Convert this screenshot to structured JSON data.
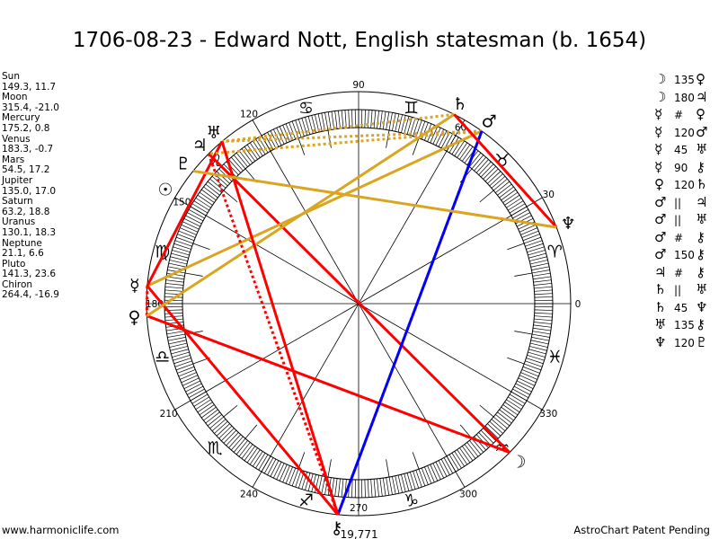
{
  "title": "1706-08-23 - Edward Nott, English statesman (b. 1654)",
  "footer": {
    "left": "www.harmoniclife.com",
    "right": "AstroChart Patent Pending"
  },
  "chiron_note": "19,771",
  "colors": {
    "hard": "#ff0000",
    "soft": "#daa520",
    "quincunx": "#0000ff",
    "line": "#000000"
  },
  "degree_labels": [
    "0",
    "30",
    "60",
    "90",
    "120",
    "150",
    "180",
    "210",
    "240",
    "270",
    "300",
    "330"
  ],
  "signs": [
    {
      "name": "aries",
      "glyph": "♈"
    },
    {
      "name": "taurus",
      "glyph": "♉"
    },
    {
      "name": "gemini",
      "glyph": "♊"
    },
    {
      "name": "cancer",
      "glyph": "♋"
    },
    {
      "name": "leo",
      "glyph": "♌"
    },
    {
      "name": "virgo",
      "glyph": "♍"
    },
    {
      "name": "libra",
      "glyph": "♎"
    },
    {
      "name": "scorpio",
      "glyph": "♏"
    },
    {
      "name": "sagittarius",
      "glyph": "♐"
    },
    {
      "name": "capricorn",
      "glyph": "♑"
    },
    {
      "name": "aquarius",
      "glyph": "♒"
    },
    {
      "name": "pisces",
      "glyph": "♓"
    }
  ],
  "planets": [
    {
      "name": "Sun",
      "glyph": "☉",
      "coords": "149.3, 11.7",
      "lon": 149.3
    },
    {
      "name": "Moon",
      "glyph": "☽",
      "coords": "315.4, -21.0",
      "lon": 315.4
    },
    {
      "name": "Mercury",
      "glyph": "☿",
      "coords": "175.2, 0.8",
      "lon": 175.2
    },
    {
      "name": "Venus",
      "glyph": "♀",
      "coords": "183.3, -0.7",
      "lon": 183.3
    },
    {
      "name": "Mars",
      "glyph": "♂",
      "coords": "54.5, 17.2",
      "lon": 54.5
    },
    {
      "name": "Jupiter",
      "glyph": "♃",
      "coords": "135.0, 17.0",
      "lon": 135.0
    },
    {
      "name": "Saturn",
      "glyph": "♄",
      "coords": "63.2, 18.8",
      "lon": 63.2
    },
    {
      "name": "Uranus",
      "glyph": "♅",
      "coords": "130.1, 18.3",
      "lon": 130.1
    },
    {
      "name": "Neptune",
      "glyph": "♆",
      "coords": "21.1, 6.6",
      "lon": 21.1
    },
    {
      "name": "Pluto",
      "glyph": "♇",
      "coords": "141.3, 23.6",
      "lon": 141.3
    },
    {
      "name": "Chiron",
      "glyph": "⚷",
      "coords": "264.4, -16.9",
      "lon": 264.4
    }
  ],
  "aspects": [
    {
      "p1": "Moon",
      "label": "135",
      "p2": "Venus",
      "kind": "hard"
    },
    {
      "p1": "Moon",
      "label": "180",
      "p2": "Jupiter",
      "kind": "hard"
    },
    {
      "p1": "Mercury",
      "label": "#",
      "p2": "Venus",
      "kind": "hard-dotted"
    },
    {
      "p1": "Mercury",
      "label": "120",
      "p2": "Mars",
      "kind": "soft"
    },
    {
      "p1": "Mercury",
      "label": "45",
      "p2": "Uranus",
      "kind": "hard"
    },
    {
      "p1": "Mercury",
      "label": "90",
      "p2": "Chiron",
      "kind": "hard"
    },
    {
      "p1": "Venus",
      "label": "120",
      "p2": "Saturn",
      "kind": "soft"
    },
    {
      "p1": "Mars",
      "label": "||",
      "p2": "Jupiter",
      "kind": "soft-dotted"
    },
    {
      "p1": "Mars",
      "label": "||",
      "p2": "Uranus",
      "kind": "soft-dotted"
    },
    {
      "p1": "Mars",
      "label": "#",
      "p2": "Chiron",
      "kind": "hard-dotted"
    },
    {
      "p1": "Mars",
      "label": "150",
      "p2": "Chiron",
      "kind": "quincunx"
    },
    {
      "p1": "Jupiter",
      "label": "#",
      "p2": "Chiron",
      "kind": "hard-dotted"
    },
    {
      "p1": "Saturn",
      "label": "||",
      "p2": "Uranus",
      "kind": "soft-dotted"
    },
    {
      "p1": "Saturn",
      "label": "45",
      "p2": "Neptune",
      "kind": "hard"
    },
    {
      "p1": "Uranus",
      "label": "135",
      "p2": "Chiron",
      "kind": "hard"
    },
    {
      "p1": "Neptune",
      "label": "120",
      "p2": "Pluto",
      "kind": "soft"
    }
  ]
}
